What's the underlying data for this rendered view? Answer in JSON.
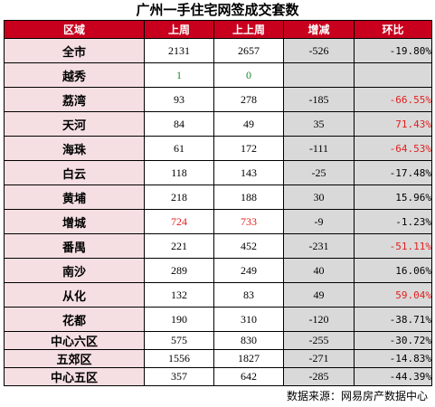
{
  "title": "广州一手住宅网签成交套数",
  "headers": [
    "区域",
    "上周",
    "上上周",
    "增减",
    "环比"
  ],
  "rows": [
    {
      "region": "全市",
      "last_week": "2131",
      "prev_week": "2657",
      "change": "-526",
      "ratio": "-19.80%"
    },
    {
      "region": "越秀",
      "last_week": "1",
      "prev_week": "0",
      "change": "",
      "ratio": ""
    },
    {
      "region": "荔湾",
      "last_week": "93",
      "prev_week": "278",
      "change": "-185",
      "ratio": "-66.55%"
    },
    {
      "region": "天河",
      "last_week": "84",
      "prev_week": "49",
      "change": "35",
      "ratio": "71.43%"
    },
    {
      "region": "海珠",
      "last_week": "61",
      "prev_week": "172",
      "change": "-111",
      "ratio": "-64.53%"
    },
    {
      "region": "白云",
      "last_week": "118",
      "prev_week": "143",
      "change": "-25",
      "ratio": "-17.48%"
    },
    {
      "region": "黄埔",
      "last_week": "218",
      "prev_week": "188",
      "change": "30",
      "ratio": "15.96%"
    },
    {
      "region": "增城",
      "last_week": "724",
      "prev_week": "733",
      "change": "-9",
      "ratio": "-1.23%"
    },
    {
      "region": "番禺",
      "last_week": "221",
      "prev_week": "452",
      "change": "-231",
      "ratio": "-51.11%"
    },
    {
      "region": "南沙",
      "last_week": "289",
      "prev_week": "249",
      "change": "40",
      "ratio": "16.06%"
    },
    {
      "region": "从化",
      "last_week": "132",
      "prev_week": "83",
      "change": "49",
      "ratio": "59.04%"
    },
    {
      "region": "花都",
      "last_week": "190",
      "prev_week": "310",
      "change": "-120",
      "ratio": "-38.71%"
    },
    {
      "region": "中心六区",
      "last_week": "575",
      "prev_week": "830",
      "change": "-255",
      "ratio": "-30.72%"
    },
    {
      "region": "五郊区",
      "last_week": "1556",
      "prev_week": "1827",
      "change": "-271",
      "ratio": "-14.83%"
    },
    {
      "region": "中心五区",
      "last_week": "357",
      "prev_week": "642",
      "change": "-285",
      "ratio": "-44.39%"
    }
  ],
  "source": "数据来源：网易房产数据中心",
  "colors": {
    "header_bg": "#c8001e",
    "region_bg": "#f5dfe2",
    "change_bg": "#d9d9d9",
    "highlight_red": "#e11e1e",
    "highlight_green": "#1a8a2e"
  }
}
